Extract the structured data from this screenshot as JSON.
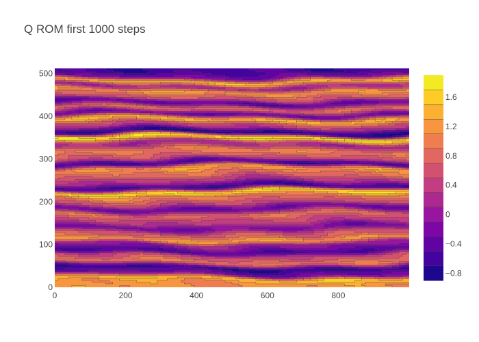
{
  "chart_data": {
    "type": "contour",
    "title": "Q ROM first 1000 steps",
    "xlabel": "",
    "ylabel": "",
    "xlim": [
      0,
      1000
    ],
    "ylim": [
      0,
      512
    ],
    "zlim": [
      -0.9,
      1.9
    ],
    "contour_step": 0.2,
    "x_ticks": [
      "0",
      "200",
      "400",
      "600",
      "800"
    ],
    "y_ticks": [
      "0",
      "100",
      "200",
      "300",
      "400",
      "500"
    ],
    "colorbar_ticks": [
      "−0.8",
      "−0.4",
      "0",
      "0.4",
      "0.8",
      "1.2",
      "1.6"
    ],
    "colorscale": [
      "#0d0887",
      "#46039f",
      "#7201a8",
      "#9c179e",
      "#bd3786",
      "#d8576b",
      "#ed7953",
      "#fb9f3a",
      "#fdca26",
      "#f0f921"
    ],
    "line_color": "#444444",
    "bands": [
      {
        "y": 10,
        "value": 1.15
      },
      {
        "y": 20,
        "value": 1.45
      },
      {
        "y": 33,
        "value": -0.3
      },
      {
        "y": 45,
        "value": -0.7
      },
      {
        "y": 60,
        "value": 0.9
      },
      {
        "y": 72,
        "value": 0.6
      },
      {
        "y": 85,
        "value": -0.5
      },
      {
        "y": 100,
        "value": 0.0
      },
      {
        "y": 112,
        "value": 1.2
      },
      {
        "y": 125,
        "value": 0.7
      },
      {
        "y": 140,
        "value": -0.2
      },
      {
        "y": 155,
        "value": 0.4
      },
      {
        "y": 170,
        "value": 0.8
      },
      {
        "y": 185,
        "value": -0.3
      },
      {
        "y": 200,
        "value": 0.6
      },
      {
        "y": 212,
        "value": 1.0
      },
      {
        "y": 222,
        "value": 1.7
      },
      {
        "y": 235,
        "value": -0.6
      },
      {
        "y": 250,
        "value": 0.3
      },
      {
        "y": 262,
        "value": 0.8
      },
      {
        "y": 278,
        "value": 1.2
      },
      {
        "y": 290,
        "value": -0.55
      },
      {
        "y": 305,
        "value": 0.7
      },
      {
        "y": 318,
        "value": 1.0
      },
      {
        "y": 335,
        "value": 0.2
      },
      {
        "y": 350,
        "value": 1.8
      },
      {
        "y": 362,
        "value": -0.8
      },
      {
        "y": 378,
        "value": 0.4
      },
      {
        "y": 392,
        "value": 1.4
      },
      {
        "y": 405,
        "value": -0.3
      },
      {
        "y": 418,
        "value": 0.8
      },
      {
        "y": 432,
        "value": -0.4
      },
      {
        "y": 445,
        "value": 0.7
      },
      {
        "y": 458,
        "value": 1.2
      },
      {
        "y": 470,
        "value": 0.2
      },
      {
        "y": 482,
        "value": 1.4
      },
      {
        "y": 495,
        "value": -0.3
      },
      {
        "y": 505,
        "value": -0.6
      }
    ]
  }
}
